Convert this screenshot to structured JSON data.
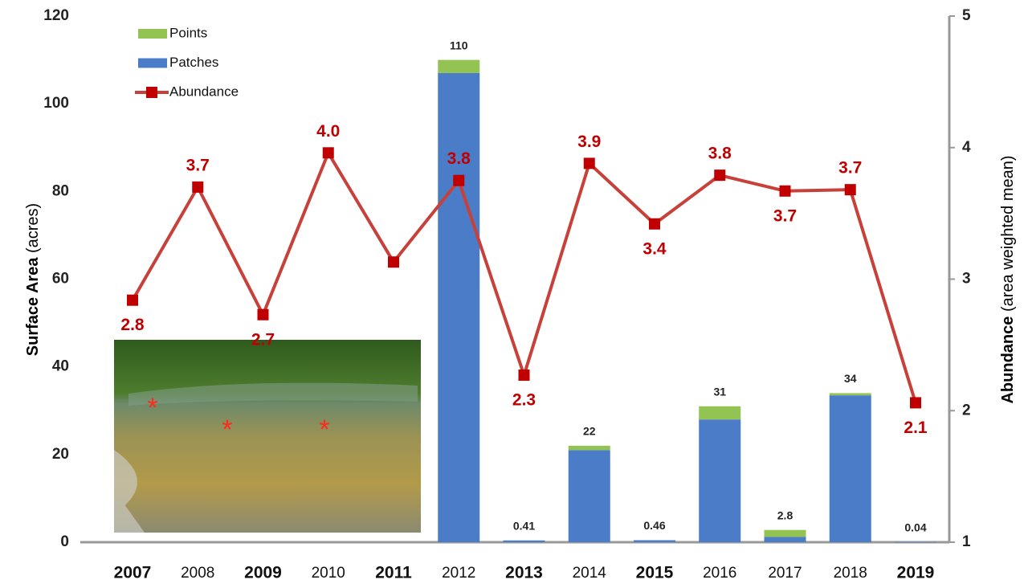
{
  "chart_data": {
    "type": "bar_line",
    "categories": [
      "2007",
      "2008",
      "2009",
      "2010",
      "2011",
      "2012",
      "2013",
      "2014",
      "2015",
      "2016",
      "2017",
      "2018",
      "2019"
    ],
    "category_bold": [
      true,
      false,
      true,
      false,
      true,
      false,
      true,
      false,
      true,
      false,
      false,
      false,
      true
    ],
    "y_label": "Surface Area",
    "y_label_unit": "(acres)",
    "y2_label": "Abundance",
    "y2_label_unit": "(area weighted mean)",
    "ylim": [
      0,
      120
    ],
    "yticks": [
      0,
      20,
      40,
      60,
      80,
      100,
      120
    ],
    "y2lim": [
      1,
      5
    ],
    "y2ticks": [
      1,
      2,
      3,
      4,
      5
    ],
    "series": [
      {
        "name": "Points",
        "color": "#92c353",
        "stack": true,
        "values": [
          null,
          null,
          null,
          null,
          null,
          3,
          null,
          1,
          null,
          3,
          1.6,
          0.5,
          null
        ]
      },
      {
        "name": "Patches",
        "color": "#4a7cc7",
        "stack": true,
        "values": [
          null,
          null,
          null,
          null,
          null,
          107,
          0.41,
          21,
          0.46,
          28,
          1.2,
          33.5,
          0.04
        ]
      },
      {
        "name": "Abundance",
        "color": "#c8403a",
        "marker_color": "#c00000",
        "axis": "y2",
        "values": [
          2.84,
          3.7,
          2.73,
          3.96,
          3.13,
          3.75,
          2.27,
          3.88,
          3.42,
          3.79,
          3.67,
          3.68,
          2.06
        ],
        "value_labels": [
          "2.8",
          "3.7",
          "2.7",
          "4.0",
          null,
          "3.8",
          "2.3",
          "3.9",
          "3.4",
          "3.8",
          "3.7",
          "3.7",
          "2.1"
        ]
      }
    ],
    "totals": [
      null,
      null,
      null,
      null,
      null,
      110,
      0.41,
      22,
      0.46,
      31,
      2.8,
      34,
      0.04
    ]
  }
}
